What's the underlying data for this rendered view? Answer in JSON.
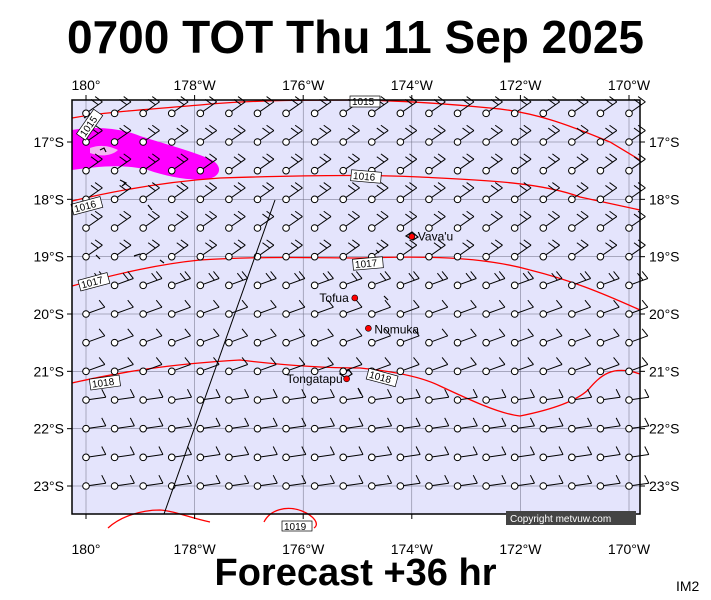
{
  "title": "0700 TOT Thu 11 Sep 2025",
  "subtitle": "Forecast +36 hr",
  "corner_label": "IM2",
  "copyright": "Copyright metvuw.com",
  "lon_ticks": [
    {
      "lon": 180,
      "label": "180°"
    },
    {
      "lon": 178,
      "label": "178°W"
    },
    {
      "lon": 176,
      "label": "176°W"
    },
    {
      "lon": 174,
      "label": "174°W"
    },
    {
      "lon": 172,
      "label": "172°W"
    },
    {
      "lon": 170,
      "label": "170°W"
    }
  ],
  "lat_ticks": [
    {
      "lat": 17,
      "label": "17°S"
    },
    {
      "lat": 18,
      "label": "18°S"
    },
    {
      "lat": 19,
      "label": "19°S"
    },
    {
      "lat": 20,
      "label": "20°S"
    },
    {
      "lat": 21,
      "label": "21°S"
    },
    {
      "lat": 22,
      "label": "22°S"
    },
    {
      "lat": 23,
      "label": "23°S"
    }
  ],
  "places": [
    {
      "name": "Vava'u",
      "lon": 174.0,
      "lat": 18.65
    },
    {
      "name": "Tofua",
      "lon": 175.05,
      "lat": 19.72
    },
    {
      "name": "Nomuka",
      "lon": 174.8,
      "lat": 20.25
    },
    {
      "name": "Tongatapu",
      "lon": 175.2,
      "lat": 21.13
    }
  ],
  "isobar_labels": [
    "1015",
    "1016",
    "1016",
    "1017",
    "1017",
    "1018",
    "1018",
    "1019",
    "1015"
  ],
  "colors": {
    "ocean": "#e4e4fc",
    "isobar": "#ff0000",
    "rain": "#ff00ff",
    "land": "#000000",
    "place_dot": "#ff0000",
    "copyright_bg": "#444444"
  }
}
